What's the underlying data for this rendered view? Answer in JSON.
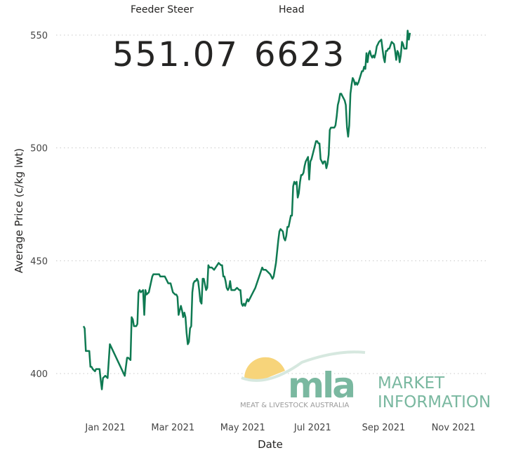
{
  "cards": [
    {
      "label": "Feeder Steer",
      "value": "551.07"
    },
    {
      "label": "Head",
      "value": "6623"
    }
  ],
  "logo": {
    "mark": "mla",
    "subtitle": "MEAT & LIVESTOCK AUSTRALIA",
    "line1": "MARKET",
    "line2": "INFORMATION"
  },
  "colors": {
    "line": "#0f7a52",
    "grid": "#c8c8c8",
    "text": "#444444",
    "logo_green": "#7ab8a0",
    "logo_yellow": "#f7d47a"
  },
  "chart_data": {
    "type": "line",
    "xlabel": "Date",
    "ylabel": "Average Price (c/kg lwt)",
    "ylim": [
      400,
      555
    ],
    "yticks": [
      400,
      450,
      500,
      550
    ],
    "xlim": [
      -8,
      330
    ],
    "x_unit": "days from 2021-01-01",
    "xticks": [
      {
        "x": 0,
        "label": "Jan 2021"
      },
      {
        "x": 59,
        "label": "Mar 2021"
      },
      {
        "x": 120,
        "label": "May 2021"
      },
      {
        "x": 181,
        "label": "Jul 2021"
      },
      {
        "x": 243,
        "label": "Sep 2021"
      },
      {
        "x": 304,
        "label": "Nov 2021"
      }
    ],
    "grid": true,
    "series": [
      {
        "name": "Feeder Steer",
        "points": [
          [
            -19,
            421
          ],
          [
            -18,
            420
          ],
          [
            -17,
            410
          ],
          [
            -15,
            410
          ],
          [
            -14,
            410
          ],
          [
            -13,
            403
          ],
          [
            -12,
            403
          ],
          [
            -11,
            402
          ],
          [
            -9,
            401
          ],
          [
            -8,
            402
          ],
          [
            -6,
            402
          ],
          [
            -5,
            402
          ],
          [
            -4,
            397
          ],
          [
            -3,
            393
          ],
          [
            -2,
            398
          ],
          [
            0,
            399
          ],
          [
            2,
            398
          ],
          [
            4,
            413
          ],
          [
            17,
            399
          ],
          [
            19,
            407
          ],
          [
            20,
            407
          ],
          [
            22,
            406
          ],
          [
            23,
            425
          ],
          [
            24,
            424
          ],
          [
            25,
            421
          ],
          [
            27,
            421
          ],
          [
            28,
            422
          ],
          [
            29,
            436
          ],
          [
            30,
            437
          ],
          [
            31,
            436
          ],
          [
            33,
            437
          ],
          [
            34,
            426
          ],
          [
            35,
            437
          ],
          [
            36,
            435
          ],
          [
            38,
            436
          ],
          [
            41,
            443
          ],
          [
            42,
            444
          ],
          [
            45,
            444
          ],
          [
            47,
            444
          ],
          [
            48,
            443
          ],
          [
            52,
            443
          ],
          [
            55,
            440
          ],
          [
            57,
            440
          ],
          [
            59,
            436
          ],
          [
            61,
            435
          ],
          [
            62,
            435
          ],
          [
            63,
            434
          ],
          [
            64,
            426
          ],
          [
            66,
            430
          ],
          [
            67,
            428
          ],
          [
            68,
            425
          ],
          [
            69,
            427
          ],
          [
            70,
            425
          ],
          [
            71,
            418
          ],
          [
            72,
            413
          ],
          [
            73,
            414
          ],
          [
            74,
            420
          ],
          [
            75,
            421
          ],
          [
            76,
            436
          ],
          [
            77,
            440
          ],
          [
            78,
            441
          ],
          [
            79,
            441
          ],
          [
            80,
            442
          ],
          [
            81,
            441
          ],
          [
            82,
            437
          ],
          [
            83,
            432
          ],
          [
            84,
            431
          ],
          [
            85,
            442
          ],
          [
            86,
            442
          ],
          [
            88,
            437
          ],
          [
            89,
            438
          ],
          [
            90,
            448
          ],
          [
            91,
            447
          ],
          [
            93,
            447
          ],
          [
            95,
            446
          ],
          [
            99,
            449
          ],
          [
            101,
            448
          ],
          [
            102,
            448
          ],
          [
            103,
            443
          ],
          [
            104,
            443
          ],
          [
            105,
            441
          ],
          [
            106,
            438
          ],
          [
            107,
            437
          ],
          [
            108,
            438
          ],
          [
            109,
            441
          ],
          [
            110,
            437
          ],
          [
            111,
            437
          ],
          [
            113,
            437
          ],
          [
            115,
            438
          ],
          [
            117,
            437
          ],
          [
            118,
            437
          ],
          [
            119,
            431
          ],
          [
            120,
            430
          ],
          [
            121,
            431
          ],
          [
            122,
            430
          ],
          [
            124,
            433
          ],
          [
            125,
            432
          ],
          [
            127,
            434
          ],
          [
            128,
            435
          ],
          [
            130,
            437
          ],
          [
            131,
            438
          ],
          [
            137,
            447
          ],
          [
            138,
            446
          ],
          [
            140,
            446
          ],
          [
            142,
            445
          ],
          [
            144,
            444
          ],
          [
            146,
            442
          ],
          [
            147,
            443
          ],
          [
            149,
            449
          ],
          [
            151,
            459
          ],
          [
            152,
            463
          ],
          [
            153,
            464
          ],
          [
            155,
            463
          ],
          [
            156,
            460
          ],
          [
            157,
            459
          ],
          [
            158,
            461
          ],
          [
            159,
            465
          ],
          [
            160,
            465
          ],
          [
            162,
            470
          ],
          [
            163,
            470
          ],
          [
            164,
            483
          ],
          [
            165,
            485
          ],
          [
            166,
            484
          ],
          [
            167,
            485
          ],
          [
            168,
            478
          ],
          [
            169,
            480
          ],
          [
            170,
            485
          ],
          [
            171,
            488
          ],
          [
            172,
            488
          ],
          [
            173,
            489
          ],
          [
            174,
            492
          ],
          [
            175,
            494
          ],
          [
            176,
            495
          ],
          [
            177,
            496
          ],
          [
            178,
            486
          ],
          [
            179,
            494
          ],
          [
            180,
            495
          ],
          [
            184,
            503
          ],
          [
            185,
            503
          ],
          [
            186,
            502
          ],
          [
            187,
            502
          ],
          [
            188,
            495
          ],
          [
            189,
            494
          ],
          [
            190,
            493
          ],
          [
            191,
            494
          ],
          [
            192,
            494
          ],
          [
            193,
            491
          ],
          [
            194,
            493
          ],
          [
            195,
            497
          ],
          [
            196,
            508
          ],
          [
            197,
            509
          ],
          [
            198,
            509
          ],
          [
            199,
            509
          ],
          [
            200,
            509
          ],
          [
            201,
            510
          ],
          [
            202,
            514
          ],
          [
            203,
            519
          ],
          [
            204,
            521
          ],
          [
            205,
            524
          ],
          [
            206,
            524
          ],
          [
            207,
            523
          ],
          [
            208,
            522
          ],
          [
            209,
            521
          ],
          [
            210,
            519
          ],
          [
            211,
            509
          ],
          [
            212,
            505
          ],
          [
            213,
            510
          ],
          [
            214,
            524
          ],
          [
            215,
            528
          ],
          [
            216,
            531
          ],
          [
            217,
            530
          ],
          [
            218,
            528
          ],
          [
            219,
            529
          ],
          [
            220,
            528
          ],
          [
            221,
            529
          ],
          [
            224,
            534
          ],
          [
            225,
            534
          ],
          [
            226,
            536
          ],
          [
            227,
            535
          ],
          [
            228,
            542
          ],
          [
            229,
            538
          ],
          [
            230,
            542
          ],
          [
            231,
            543
          ],
          [
            232,
            541
          ],
          [
            233,
            540
          ],
          [
            234,
            541
          ],
          [
            235,
            540
          ],
          [
            236,
            542
          ],
          [
            237,
            545
          ],
          [
            238,
            546
          ],
          [
            239,
            547
          ],
          [
            241,
            548
          ],
          [
            242,
            544
          ],
          [
            243,
            540
          ],
          [
            244,
            538
          ],
          [
            245,
            543
          ],
          [
            246,
            543
          ],
          [
            247,
            544
          ],
          [
            248,
            544
          ],
          [
            250,
            547
          ],
          [
            252,
            546
          ],
          [
            253,
            543
          ],
          [
            254,
            539
          ],
          [
            255,
            543
          ],
          [
            256,
            542
          ],
          [
            257,
            538
          ],
          [
            258,
            541
          ],
          [
            259,
            547
          ],
          [
            260,
            546
          ],
          [
            261,
            544
          ],
          [
            262,
            544
          ],
          [
            263,
            544
          ],
          [
            264,
            552
          ],
          [
            265,
            548
          ],
          [
            266,
            551
          ]
        ]
      }
    ]
  }
}
